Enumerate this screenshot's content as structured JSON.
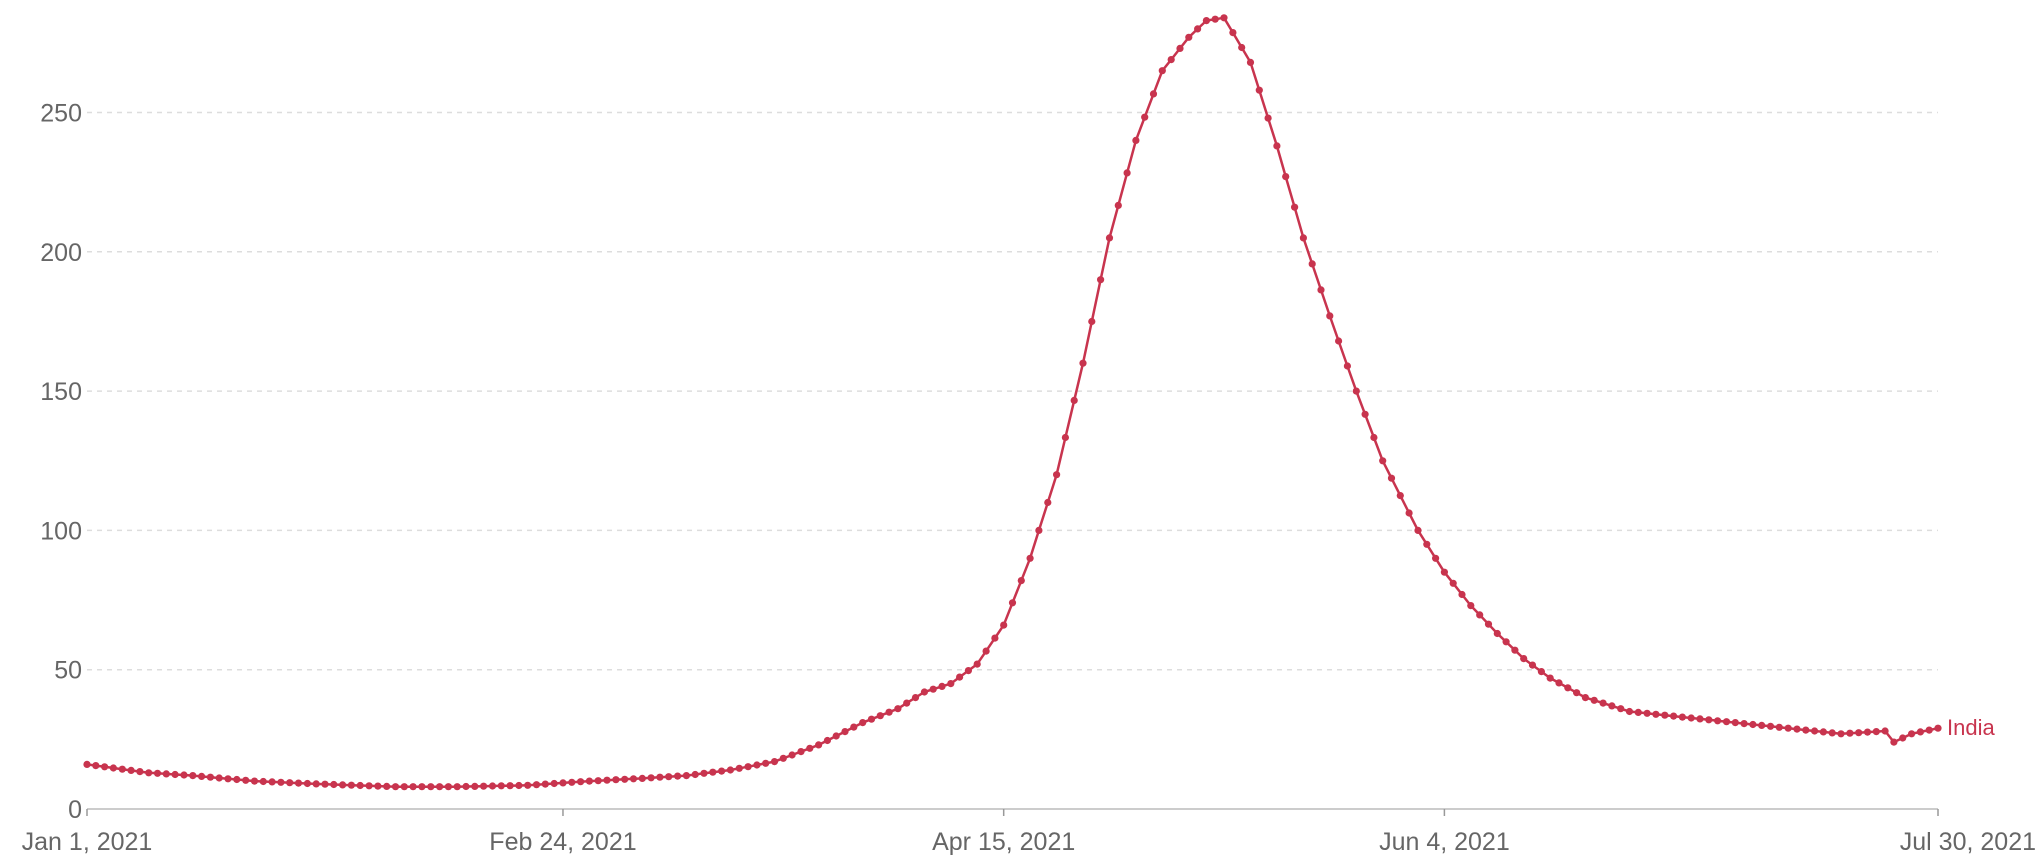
{
  "chart_data": {
    "type": "line",
    "title": "",
    "xlabel": "",
    "ylabel": "",
    "ylim": [
      0,
      285
    ],
    "xlim": [
      "2021-01-01",
      "2021-07-30"
    ],
    "yticks": [
      0,
      50,
      100,
      150,
      200,
      250
    ],
    "ytick_labels": [
      "0",
      "50",
      "100",
      "150",
      "200",
      "250"
    ],
    "xticks": [
      "2021-01-01",
      "2021-02-24",
      "2021-04-15",
      "2021-06-04",
      "2021-07-30"
    ],
    "xtick_labels": [
      "Jan 1, 2021",
      "Feb 24, 2021",
      "Apr 15, 2021",
      "Jun 4, 2021",
      "Jul 30, 2021"
    ],
    "grid": true,
    "color": "#c8344e",
    "series": [
      {
        "name": "India",
        "x": [
          "2021-01-01",
          "2021-01-08",
          "2021-01-13",
          "2021-01-20",
          "2021-01-27",
          "2021-02-05",
          "2021-02-12",
          "2021-02-20",
          "2021-02-27",
          "2021-03-05",
          "2021-03-10",
          "2021-03-15",
          "2021-03-20",
          "2021-03-25",
          "2021-03-30",
          "2021-04-03",
          "2021-04-06",
          "2021-04-09",
          "2021-04-12",
          "2021-04-15",
          "2021-04-18",
          "2021-04-21",
          "2021-04-24",
          "2021-04-27",
          "2021-04-30",
          "2021-05-03",
          "2021-05-06",
          "2021-05-08",
          "2021-05-10",
          "2021-05-13",
          "2021-05-16",
          "2021-05-19",
          "2021-05-22",
          "2021-05-25",
          "2021-05-28",
          "2021-06-01",
          "2021-06-04",
          "2021-06-07",
          "2021-06-10",
          "2021-06-13",
          "2021-06-16",
          "2021-06-20",
          "2021-06-25",
          "2021-07-01",
          "2021-07-07",
          "2021-07-13",
          "2021-07-19",
          "2021-07-24",
          "2021-07-25",
          "2021-07-27",
          "2021-07-30"
        ],
        "y": [
          16,
          13,
          12,
          10,
          9,
          8,
          8,
          8.5,
          10,
          11,
          12,
          14,
          17,
          23,
          31,
          36,
          42,
          45,
          52,
          66,
          90,
          120,
          160,
          205,
          240,
          265,
          277,
          283,
          284,
          268,
          238,
          205,
          177,
          150,
          125,
          100,
          85,
          73,
          63,
          54,
          47,
          40,
          35,
          33,
          31,
          29,
          27,
          28,
          24,
          27,
          29
        ]
      }
    ]
  }
}
